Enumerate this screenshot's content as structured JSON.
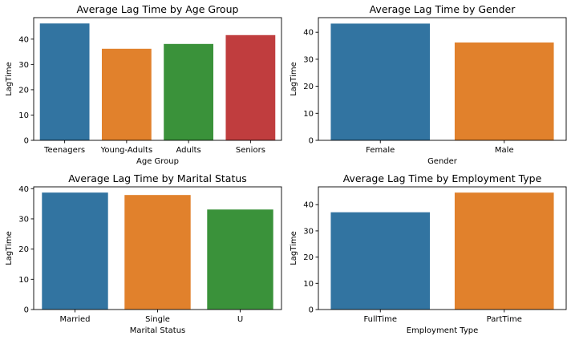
{
  "chart_data": [
    {
      "type": "bar",
      "title": "Average Lag Time by Age Group",
      "xlabel": "Age Group",
      "ylabel": "LagTime",
      "categories": [
        "Teenagers",
        "Young-Adults",
        "Adults",
        "Seniors"
      ],
      "values": [
        46.2,
        36.2,
        38.1,
        41.6
      ],
      "ylim": [
        0,
        48.5
      ],
      "yticks": [
        0,
        10,
        20,
        30,
        40
      ],
      "colors": [
        "#3274a1",
        "#e1812c",
        "#3a923a",
        "#c03d3e"
      ],
      "grid": false,
      "legend": "none"
    },
    {
      "type": "bar",
      "title": "Average Lag Time by Gender",
      "xlabel": "Gender",
      "ylabel": "LagTime",
      "categories": [
        "Female",
        "Male"
      ],
      "values": [
        43.2,
        36.2
      ],
      "ylim": [
        0,
        45.4
      ],
      "yticks": [
        0,
        10,
        20,
        30,
        40
      ],
      "colors": [
        "#3274a1",
        "#e1812c"
      ],
      "grid": false,
      "legend": "none"
    },
    {
      "type": "bar",
      "title": "Average Lag Time by Marital Status",
      "xlabel": "Marital Status",
      "ylabel": "LagTime",
      "categories": [
        "Married",
        "Single",
        "U"
      ],
      "values": [
        38.7,
        37.9,
        33.1
      ],
      "ylim": [
        0,
        40.6
      ],
      "yticks": [
        0,
        10,
        20,
        30,
        40
      ],
      "colors": [
        "#3274a1",
        "#e1812c",
        "#3a923a"
      ],
      "grid": false,
      "legend": "none"
    },
    {
      "type": "bar",
      "title": "Average Lag Time by Employment Type",
      "xlabel": "Employment Type",
      "ylabel": "LagTime",
      "categories": [
        "FullTime",
        "PartTime"
      ],
      "values": [
        37.1,
        44.6
      ],
      "ylim": [
        0,
        46.8
      ],
      "yticks": [
        0,
        10,
        20,
        30,
        40
      ],
      "colors": [
        "#3274a1",
        "#e1812c"
      ],
      "grid": false,
      "legend": "none"
    }
  ]
}
